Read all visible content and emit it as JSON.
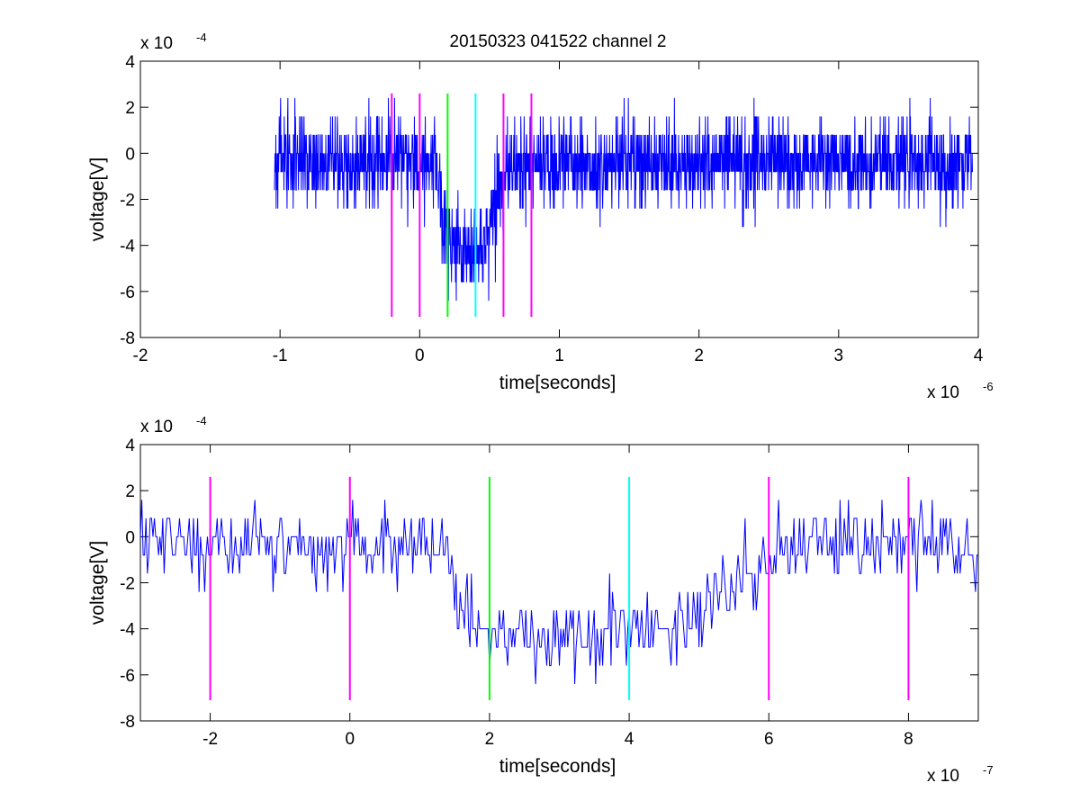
{
  "figure_title": "20150323 041522 channel 2",
  "colors": {
    "trace": "#0000ff",
    "marker_magenta": "#ff00ff",
    "marker_green": "#00ff00",
    "marker_cyan": "#00ffff",
    "axes": "#000000",
    "background": "#ffffff"
  },
  "chart_data": [
    {
      "type": "line",
      "title": "20150323 041522 channel 2",
      "xlabel": "time[seconds]",
      "ylabel": "voltage[V]",
      "x_exponent_label": "x 10",
      "x_exponent": "-6",
      "y_exponent_label": "x 10",
      "y_exponent": "-4",
      "xlim": [
        -2e-06,
        4e-06
      ],
      "ylim": [
        -0.0008,
        0.0004
      ],
      "x_ticks": [
        -2e-06,
        -1e-06,
        0,
        1e-06,
        2e-06,
        3e-06,
        4e-06
      ],
      "x_tick_labels": [
        "-2",
        "-1",
        "0",
        "1",
        "2",
        "3",
        "4"
      ],
      "y_ticks": [
        -0.0008,
        -0.0006,
        -0.0004,
        -0.0002,
        0,
        0.0002,
        0.0004
      ],
      "y_tick_labels": [
        "-8",
        "-6",
        "-4",
        "-2",
        "0",
        "2",
        "4"
      ],
      "grid": false,
      "series": [
        {
          "color": "#0000ff",
          "style": "noise-trace",
          "x_start": -1.04e-06,
          "x_end": 3.96e-06,
          "sample_step": 2e-09,
          "quantum": 8e-05,
          "baseline": -4e-05,
          "noise_sd": 9e-05,
          "range_min": -0.00064,
          "range_max": 0.00024,
          "dip": {
            "start": 1.3e-07,
            "full": 1.8e-07,
            "end": 4.4e-07,
            "recover": 6.5e-07,
            "level": -0.00042
          }
        }
      ],
      "vertical_markers": [
        {
          "x": -2e-07,
          "color": "#ff00ff",
          "y_bottom": -0.00071,
          "y_top": 0.00026
        },
        {
          "x": 0,
          "color": "#ff00ff",
          "y_bottom": -0.00071,
          "y_top": 0.00026
        },
        {
          "x": 2e-07,
          "color": "#00ff00",
          "y_bottom": -0.00071,
          "y_top": 0.00026
        },
        {
          "x": 4e-07,
          "color": "#00ffff",
          "y_bottom": -0.00071,
          "y_top": 0.00026
        },
        {
          "x": 6e-07,
          "color": "#ff00ff",
          "y_bottom": -0.00071,
          "y_top": 0.00026
        },
        {
          "x": 8e-07,
          "color": "#ff00ff",
          "y_bottom": -0.00071,
          "y_top": 0.00026
        }
      ]
    },
    {
      "type": "line",
      "title": "",
      "xlabel": "time[seconds]",
      "ylabel": "voltage[V]",
      "x_exponent_label": "x 10",
      "x_exponent": "-7",
      "y_exponent_label": "x 10",
      "y_exponent": "-4",
      "xlim": [
        -3e-07,
        9e-07
      ],
      "ylim": [
        -0.0008,
        0.0004
      ],
      "x_ticks": [
        -2e-07,
        0,
        2e-07,
        4e-07,
        6e-07,
        8e-07
      ],
      "x_tick_labels": [
        "-2",
        "0",
        "2",
        "4",
        "6",
        "8"
      ],
      "y_ticks": [
        -0.0008,
        -0.0006,
        -0.0004,
        -0.0002,
        0,
        0.0002,
        0.0004
      ],
      "y_tick_labels": [
        "-8",
        "-6",
        "-4",
        "-2",
        "0",
        "2",
        "4"
      ],
      "grid": false,
      "series": [
        {
          "color": "#0000ff",
          "style": "noise-trace",
          "x_start": -3e-07,
          "x_end": 9e-07,
          "sample_step": 2e-09,
          "quantum": 8e-05,
          "baseline": -4e-05,
          "noise_sd": 8e-05,
          "range_min": -0.00064,
          "range_max": 0.00024,
          "dip": {
            "start": 1.3e-07,
            "full": 1.8e-07,
            "end": 4.4e-07,
            "recover": 6.5e-07,
            "level": -0.00042
          }
        }
      ],
      "vertical_markers": [
        {
          "x": -2e-07,
          "color": "#ff00ff",
          "y_bottom": -0.00071,
          "y_top": 0.00026
        },
        {
          "x": 0,
          "color": "#ff00ff",
          "y_bottom": -0.00071,
          "y_top": 0.00026
        },
        {
          "x": 2e-07,
          "color": "#00ff00",
          "y_bottom": -0.00071,
          "y_top": 0.00026
        },
        {
          "x": 4e-07,
          "color": "#00ffff",
          "y_bottom": -0.00071,
          "y_top": 0.00026
        },
        {
          "x": 6e-07,
          "color": "#ff00ff",
          "y_bottom": -0.00071,
          "y_top": 0.00026
        },
        {
          "x": 8e-07,
          "color": "#ff00ff",
          "y_bottom": -0.00071,
          "y_top": 0.00026
        }
      ]
    }
  ]
}
